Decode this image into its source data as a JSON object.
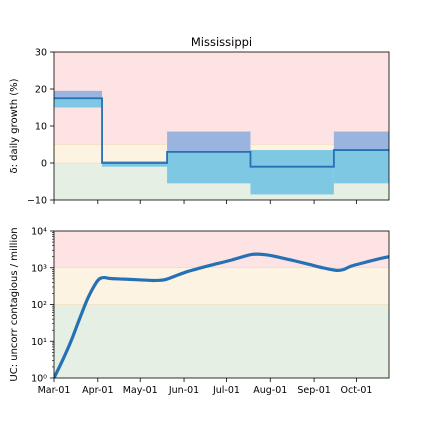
{
  "colors": {
    "zone_red": "#fde3e3",
    "zone_yellow": "#fdf3e3",
    "zone_green": "#e6efe3",
    "band_dark": "#99b5df",
    "band_light": "#7ec8e3",
    "line": "#2471b3"
  },
  "chart_data": [
    {
      "type": "step",
      "title": "Mississippi",
      "ylabel": "δ: daily growth (%)",
      "ylim": [
        -10,
        30
      ],
      "yticks": [
        "−10",
        "0",
        "10",
        "20",
        "30"
      ],
      "ytick_values": [
        -10,
        0,
        10,
        20,
        30
      ],
      "zones": [
        {
          "name": "red",
          "from": 5,
          "to": 30
        },
        {
          "name": "yellow",
          "from": 0,
          "to": 5
        },
        {
          "name": "green",
          "from": -10,
          "to": 0
        }
      ],
      "segments": [
        {
          "start": 0,
          "end": 34,
          "value": 17.5,
          "upper": 19.5,
          "mid_band": 17.5,
          "lower": 15
        },
        {
          "start": 34,
          "end": 80,
          "value": 0,
          "upper": 0.5,
          "mid_band": 0,
          "lower": -1
        },
        {
          "start": 80,
          "end": 139,
          "value": 3,
          "upper": 8.5,
          "mid_band": 3,
          "lower": -5.5
        },
        {
          "start": 139,
          "end": 198,
          "value": -1,
          "upper": 3.5,
          "mid_band": 3.5,
          "lower": -8.5
        },
        {
          "start": 198,
          "end": 237,
          "value": 3.5,
          "upper": 8.5,
          "mid_band": 3.5,
          "lower": -5.5
        }
      ]
    },
    {
      "type": "line",
      "ylabel": "UC: uncorr contagious / million",
      "yscale": "log",
      "ylim": [
        1,
        10000
      ],
      "yticks": [
        "10⁰",
        "10¹",
        "10²",
        "10³",
        "10⁴"
      ],
      "ytick_values": [
        1,
        10,
        100,
        1000,
        10000
      ],
      "zones": [
        {
          "name": "red",
          "from": 1000,
          "to": 10000
        },
        {
          "name": "yellow",
          "from": 100,
          "to": 1000
        },
        {
          "name": "green",
          "from": 1,
          "to": 100
        }
      ],
      "x": [
        0,
        6,
        12,
        18,
        24,
        30,
        33,
        36,
        40,
        50,
        60,
        70,
        78,
        85,
        95,
        110,
        125,
        140,
        150,
        160,
        170,
        180,
        190,
        200,
        205,
        210,
        220,
        230,
        237
      ],
      "values": [
        1,
        3,
        10,
        40,
        150,
        400,
        520,
        540,
        510,
        490,
        470,
        450,
        470,
        580,
        800,
        1150,
        1600,
        2300,
        2250,
        1900,
        1550,
        1250,
        1000,
        850,
        900,
        1100,
        1400,
        1750,
        2000
      ]
    }
  ],
  "xaxis": {
    "range": [
      0,
      237
    ],
    "tick_positions": [
      0,
      31,
      61,
      92,
      122,
      153,
      184,
      214
    ],
    "tick_labels": [
      "Mar-01",
      "Apr-01",
      "May-01",
      "Jun-01",
      "Jul-01",
      "Aug-01",
      "Sep-01",
      "Oct-01"
    ]
  }
}
